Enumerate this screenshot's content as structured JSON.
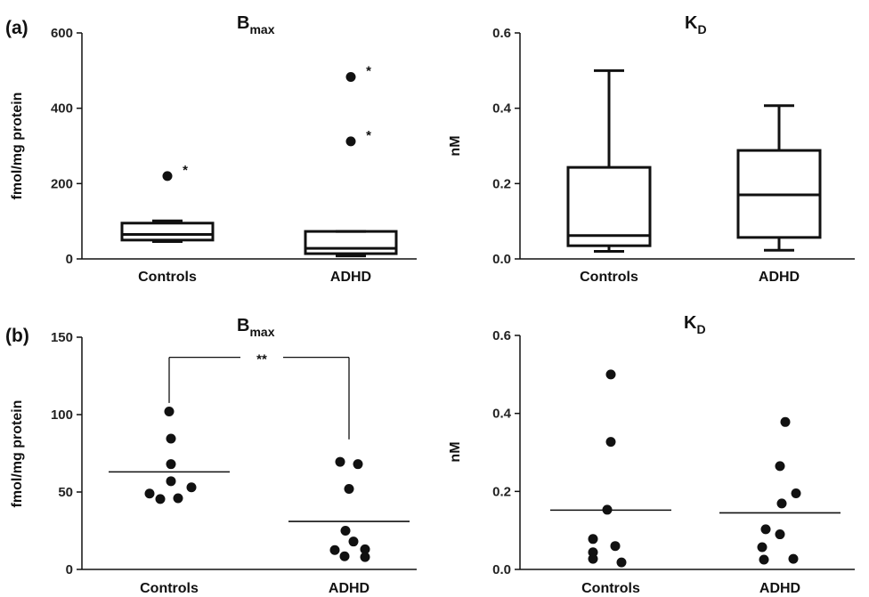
{
  "chart_data": [
    {
      "panel": "(a)",
      "type": "box",
      "title": "B",
      "title_sub": "max",
      "ylabel": "fmol/mg protein",
      "ylim": [
        0,
        600
      ],
      "yticks": [
        0,
        200,
        400,
        600
      ],
      "categories": [
        "Controls",
        "ADHD"
      ],
      "boxes": [
        {
          "category": "Controls",
          "whisker_low": 46,
          "q1": 50,
          "median": 65,
          "q3": 95,
          "whisker_high": 101
        },
        {
          "category": "ADHD",
          "whisker_low": 8,
          "q1": 14,
          "median": 28,
          "q3": 73,
          "whisker_high": 73
        }
      ],
      "outliers": [
        {
          "category": "Controls",
          "value": 220,
          "marker": "*"
        },
        {
          "category": "ADHD",
          "value": 483,
          "marker": "*"
        },
        {
          "category": "ADHD",
          "value": 312,
          "marker": "*"
        }
      ]
    },
    {
      "panel": "",
      "type": "box",
      "title": "K",
      "title_sub": "D",
      "ylabel": "nM",
      "ylim": [
        0,
        0.6
      ],
      "yticks": [
        "0.0",
        "0.2",
        "0.4",
        "0.6"
      ],
      "categories": [
        "Controls",
        "ADHD"
      ],
      "boxes": [
        {
          "category": "Controls",
          "whisker_low": 0.02,
          "q1": 0.035,
          "median": 0.062,
          "q3": 0.243,
          "whisker_high": 0.5
        },
        {
          "category": "ADHD",
          "whisker_low": 0.023,
          "q1": 0.057,
          "median": 0.17,
          "q3": 0.288,
          "whisker_high": 0.407
        }
      ]
    },
    {
      "panel": "(b)",
      "type": "scatter",
      "title": "B",
      "title_sub": "max",
      "ylabel": "fmol/mg protein",
      "ylim": [
        0,
        150
      ],
      "yticks": [
        0,
        50,
        100,
        150
      ],
      "categories": [
        "Controls",
        "ADHD"
      ],
      "points": [
        {
          "category": "Controls",
          "values": [
            102,
            84.5,
            68,
            57,
            53,
            49,
            46,
            45.5
          ]
        },
        {
          "category": "ADHD",
          "values": [
            69.5,
            68,
            52,
            25,
            18,
            13,
            12.5,
            8.5,
            8
          ]
        }
      ],
      "means": [
        {
          "category": "Controls",
          "value": 63
        },
        {
          "category": "ADHD",
          "value": 31
        }
      ],
      "significance": "**"
    },
    {
      "panel": "",
      "type": "scatter",
      "title": "K",
      "title_sub": "D",
      "ylabel": "nM",
      "ylim": [
        0,
        0.6
      ],
      "yticks": [
        "0.0",
        "0.2",
        "0.4",
        "0.6"
      ],
      "categories": [
        "Controls",
        "ADHD"
      ],
      "points": [
        {
          "category": "Controls",
          "values": [
            0.5,
            0.327,
            0.153,
            0.078,
            0.06,
            0.044,
            0.027,
            0.018
          ]
        },
        {
          "category": "ADHD",
          "values": [
            0.378,
            0.265,
            0.195,
            0.169,
            0.103,
            0.09,
            0.057,
            0.027,
            0.025
          ]
        }
      ],
      "means": [
        {
          "category": "Controls",
          "value": 0.152
        },
        {
          "category": "ADHD",
          "value": 0.145
        }
      ]
    }
  ]
}
